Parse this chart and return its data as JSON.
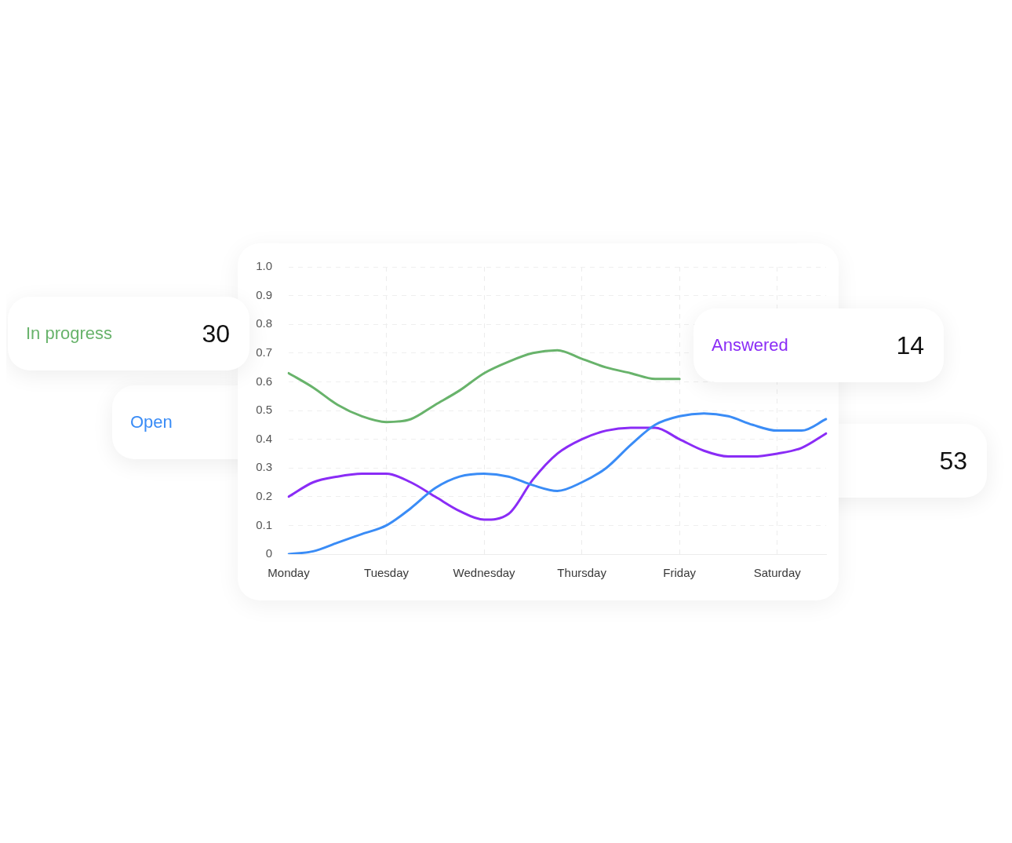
{
  "chart_data": {
    "type": "line",
    "categories": [
      "Monday",
      null,
      null,
      null,
      "Tuesday",
      null,
      null,
      null,
      "Wednesday",
      null,
      null,
      null,
      "Thursday",
      null,
      null,
      null,
      "Friday",
      null,
      null,
      null,
      "Saturday",
      null,
      null
    ],
    "ylim": [
      0,
      1
    ],
    "yticks": [
      0,
      0.1,
      0.2,
      0.3,
      0.4,
      0.5,
      0.6,
      0.7,
      0.8,
      0.9,
      {
        "value": 1,
        "label": "1.0"
      }
    ],
    "grid": true,
    "series": [
      {
        "name": "In progress",
        "color": "#68b36b",
        "values": [
          0.63,
          0.58,
          0.52,
          0.48,
          0.46,
          0.47,
          0.52,
          0.57,
          0.63,
          0.67,
          0.7,
          0.71,
          0.68,
          0.65,
          0.63,
          0.61,
          0.61,
          null,
          null,
          null,
          null,
          null,
          null
        ]
      },
      {
        "name": "Open",
        "color": "#3a8cf6",
        "values": [
          0,
          0.01,
          0.04,
          0.07,
          0.1,
          0.16,
          0.23,
          0.27,
          0.28,
          0.27,
          0.24,
          0.22,
          0.25,
          0.3,
          0.38,
          0.45,
          0.48,
          0.49,
          0.48,
          0.45,
          0.43,
          0.43,
          0.47
        ]
      },
      {
        "name": "Answered",
        "color": "#8a2cf6",
        "values": [
          0.2,
          0.25,
          0.27,
          0.28,
          0.28,
          0.25,
          0.2,
          0.15,
          0.12,
          0.14,
          0.26,
          0.35,
          0.4,
          0.43,
          0.44,
          0.44,
          0.4,
          0.36,
          0.34,
          0.34,
          0.35,
          0.37,
          0.42
        ]
      }
    ],
    "annotations": [
      "30",
      "14",
      "53"
    ]
  }
}
